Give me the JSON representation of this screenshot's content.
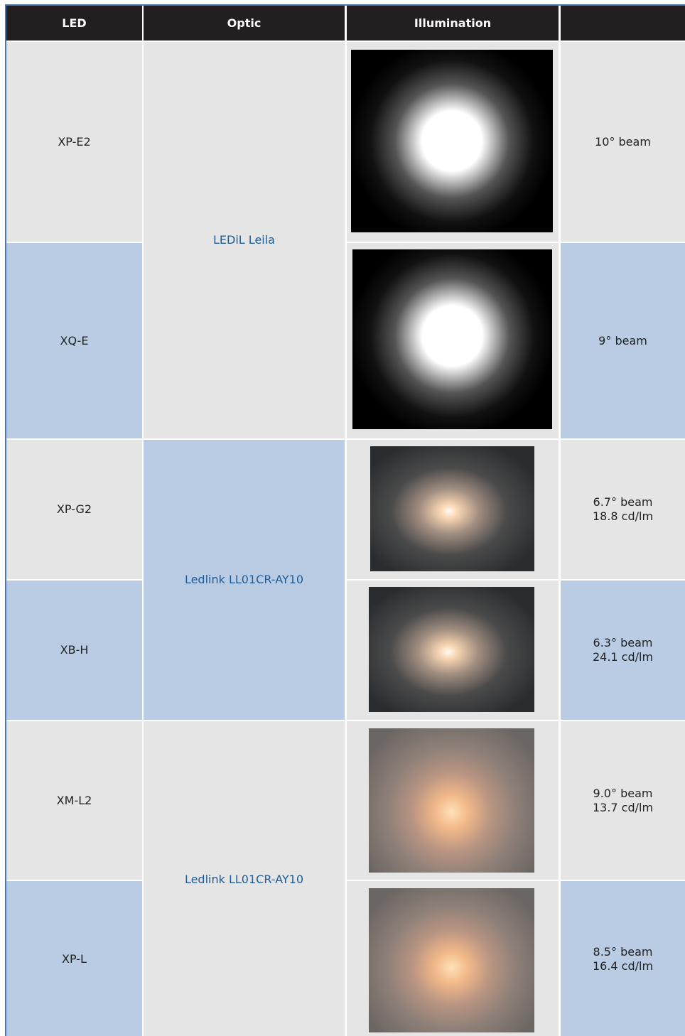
{
  "table": {
    "header": [
      "LED",
      "Optic",
      "Illumination"
    ],
    "groups": [
      {
        "optic": "LEDiL Leila",
        "rows": [
          {
            "led": "XP-E2",
            "notes": [
              "10° beam"
            ]
          },
          {
            "led": "XQ-E",
            "notes": [
              "9° beam"
            ]
          }
        ]
      },
      {
        "optic": "Ledlink LL01CR-AY10",
        "rows": [
          {
            "led": "XP-G2",
            "notes": [
              "6.7° beam",
              "18.8 cd/lm"
            ]
          },
          {
            "led": "XB-H",
            "notes": [
              "6.3° beam",
              "24.1 cd/lm"
            ]
          }
        ]
      },
      {
        "optic": "Ledlink LL01CR-AY10",
        "rows": [
          {
            "led": "XM-L2",
            "notes": [
              "9.0° beam",
              "13.7 cd/lm"
            ]
          },
          {
            "led": "XP-L",
            "notes": [
              "8.5° beam",
              "16.4 cd/lm"
            ]
          }
        ]
      }
    ]
  }
}
